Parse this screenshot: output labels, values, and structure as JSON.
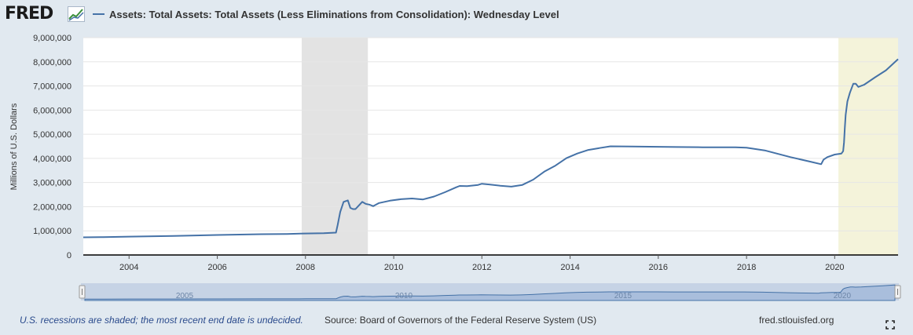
{
  "header": {
    "logo_text": "FRED",
    "logo_icon": "fred-chart-icon"
  },
  "chart_data": {
    "type": "line",
    "title": "",
    "series": [
      {
        "name": "Assets: Total Assets: Total Assets (Less Eliminations from Consolidation): Wednesday Level",
        "color": "#4572a7",
        "x": [
          "2002-12-18",
          "2003-06-01",
          "2004-01-01",
          "2005-01-01",
          "2006-01-01",
          "2007-01-01",
          "2007-08-01",
          "2008-01-01",
          "2008-06-01",
          "2008-09-10",
          "2008-09-24",
          "2008-10-15",
          "2008-11-12",
          "2008-12-17",
          "2009-01-07",
          "2009-01-28",
          "2009-02-18",
          "2009-03-18",
          "2009-04-15",
          "2009-05-13",
          "2009-06-17",
          "2009-07-15",
          "2009-09-01",
          "2009-12-01",
          "2010-03-01",
          "2010-06-01",
          "2010-09-01",
          "2010-12-01",
          "2011-03-01",
          "2011-06-01",
          "2011-07-01",
          "2011-09-01",
          "2011-12-01",
          "2012-01-01",
          "2012-03-01",
          "2012-06-01",
          "2012-09-01",
          "2012-12-01",
          "2013-03-01",
          "2013-06-01",
          "2013-09-01",
          "2013-12-01",
          "2014-03-01",
          "2014-06-01",
          "2014-09-01",
          "2014-12-01",
          "2015-06-01",
          "2016-01-01",
          "2016-06-01",
          "2017-01-01",
          "2017-06-01",
          "2017-10-01",
          "2018-01-01",
          "2018-06-01",
          "2019-01-01",
          "2019-06-01",
          "2019-09-11",
          "2019-10-01",
          "2019-11-01",
          "2020-01-01",
          "2020-02-26",
          "2020-03-11",
          "2020-03-18",
          "2020-03-25",
          "2020-04-01",
          "2020-04-15",
          "2020-05-06",
          "2020-06-03",
          "2020-06-24",
          "2020-07-15",
          "2020-09-01",
          "2020-12-01",
          "2021-03-01",
          "2021-06-09"
        ],
        "values": [
          730000,
          740000,
          760000,
          790000,
          830000,
          860000,
          870000,
          890000,
          900000,
          925000,
          1250000,
          1780000,
          2200000,
          2260000,
          1950000,
          1900000,
          1900000,
          2050000,
          2200000,
          2120000,
          2080000,
          2020000,
          2150000,
          2250000,
          2310000,
          2340000,
          2300000,
          2420000,
          2600000,
          2800000,
          2860000,
          2850000,
          2900000,
          2950000,
          2920000,
          2870000,
          2830000,
          2900000,
          3120000,
          3450000,
          3700000,
          4010000,
          4200000,
          4350000,
          4430000,
          4500000,
          4490000,
          4480000,
          4470000,
          4460000,
          4460000,
          4460000,
          4440000,
          4330000,
          4050000,
          3880000,
          3760000,
          3950000,
          4050000,
          4160000,
          4200000,
          4300000,
          4660000,
          5250000,
          5800000,
          6360000,
          6720000,
          7090000,
          7090000,
          6960000,
          7050000,
          7360000,
          7650000,
          8110000
        ]
      }
    ],
    "xlim": [
      "2002-12-18",
      "2021-06-09"
    ],
    "ylim": [
      0,
      9000000
    ],
    "x_ticks": [
      "2004",
      "2006",
      "2008",
      "2010",
      "2012",
      "2014",
      "2016",
      "2018",
      "2020"
    ],
    "y_ticks": [
      "0",
      "1,000,000",
      "2,000,000",
      "3,000,000",
      "4,000,000",
      "5,000,000",
      "6,000,000",
      "7,000,000",
      "8,000,000",
      "9,000,000"
    ],
    "ylabel": "Millions of U.S. Dollars",
    "xlabel": "",
    "grid": true,
    "recessions": [
      {
        "start": "2007-12-01",
        "end": "2009-06-01",
        "color": "#e3e3e3"
      },
      {
        "start": "2020-02-01",
        "end": "2021-06-09",
        "color": "#f4f3da"
      }
    ],
    "navigator_labels": [
      "2005",
      "2010",
      "2015",
      "2020"
    ]
  },
  "footer": {
    "note": "U.S. recessions are shaded; the most recent end date is undecided.",
    "source": "Source: Board of Governors of the Federal Reserve System (US)",
    "site": "fred.stlouisfed.org"
  }
}
